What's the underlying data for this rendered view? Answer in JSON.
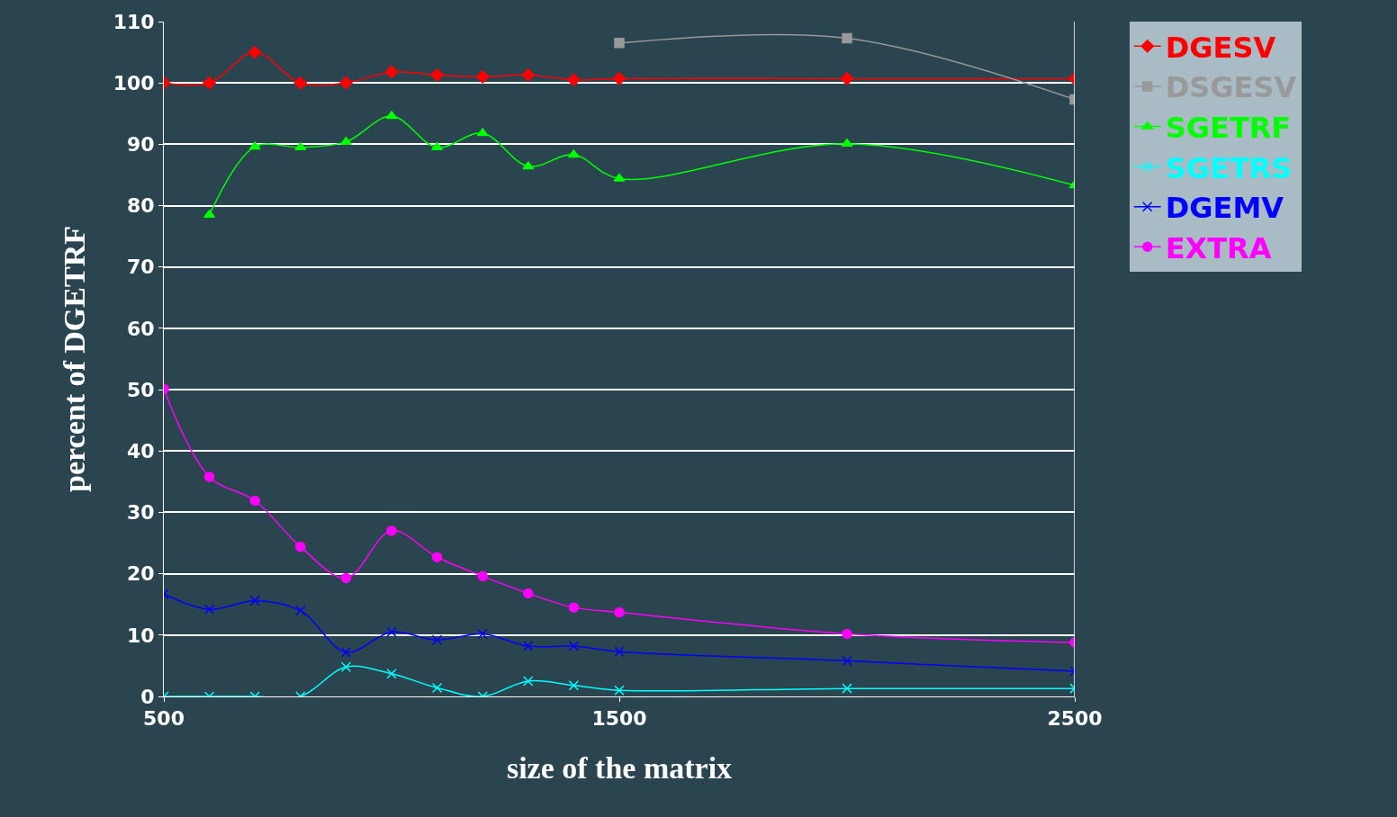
{
  "chart_data": {
    "type": "line",
    "xlabel": "size of the matrix",
    "ylabel": "percent of DGETRF",
    "x": [
      500,
      600,
      700,
      800,
      900,
      1000,
      1100,
      1200,
      1300,
      1400,
      1500,
      2000,
      2500
    ],
    "xlim": [
      500,
      2500
    ],
    "xticks": [
      500,
      1500,
      2500
    ],
    "ylim": [
      0,
      110
    ],
    "yticks": [
      0,
      10,
      20,
      30,
      40,
      50,
      60,
      70,
      80,
      90,
      100,
      110
    ],
    "grid": "y",
    "legend": "top right",
    "series": [
      {
        "name": "DGESV",
        "color": "#ff0000",
        "marker": "diamond",
        "values": [
          100,
          100,
          105,
          100,
          100,
          101.8,
          101.3,
          101,
          101.3,
          100.5,
          100.7,
          100.7,
          100.7
        ]
      },
      {
        "name": "DSGESV",
        "color": "#999999",
        "marker": "square",
        "values": [
          null,
          null,
          null,
          null,
          null,
          null,
          null,
          null,
          null,
          null,
          106.5,
          107.3,
          97.3
        ]
      },
      {
        "name": "SGETRF",
        "color": "#00ff00",
        "marker": "triangle",
        "values": [
          null,
          78.5,
          89.6,
          89.5,
          90.4,
          94.6,
          89.5,
          91.8,
          86.4,
          88.3,
          84.4,
          90.1,
          83.3
        ]
      },
      {
        "name": "SGETRS",
        "color": "#00ffff",
        "marker": "cross",
        "values": [
          0,
          0,
          0,
          0,
          4.8,
          3.7,
          1.4,
          0,
          2.5,
          1.8,
          1.0,
          1.3,
          1.3
        ]
      },
      {
        "name": "DGEMV",
        "color": "#0000ff",
        "marker": "cross",
        "values": [
          16.7,
          14.2,
          15.6,
          14.0,
          7.2,
          10.5,
          9.2,
          10.2,
          8.2,
          8.2,
          7.3,
          5.8,
          4.1
        ]
      },
      {
        "name": "EXTRA",
        "color": "#ff00ff",
        "marker": "circle",
        "values": [
          50.1,
          35.8,
          31.9,
          24.4,
          19.3,
          27.0,
          22.7,
          19.6,
          16.8,
          14.5,
          13.7,
          10.2,
          8.8
        ]
      }
    ]
  }
}
